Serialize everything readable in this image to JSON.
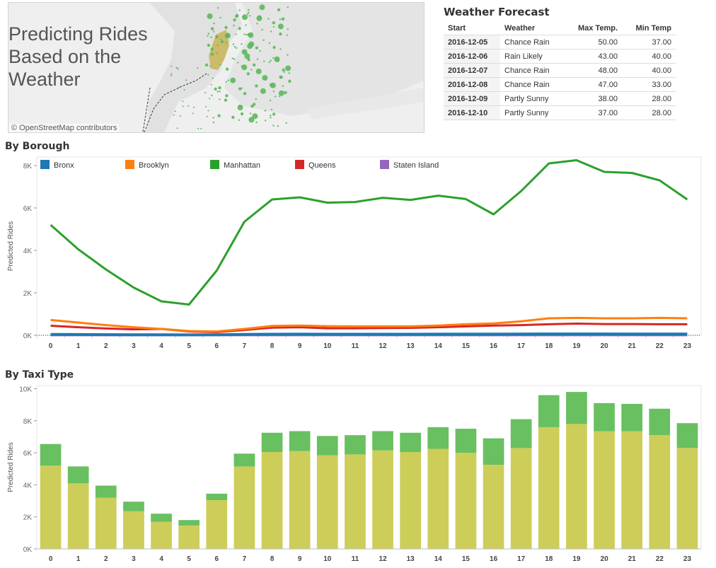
{
  "map": {
    "title_lines": [
      "Predicting Rides",
      "Based on the",
      "Weather"
    ],
    "attribution": "© OpenStreetMap contributors"
  },
  "weather": {
    "title": "Weather Forecast",
    "columns": [
      "Start",
      "Weather",
      "Max Temp.",
      "Min Temp"
    ],
    "rows": [
      [
        "2016-12-05",
        "Chance Rain",
        "50.00",
        "37.00"
      ],
      [
        "2016-12-06",
        "Rain Likely",
        "43.00",
        "40.00"
      ],
      [
        "2016-12-07",
        "Chance Rain",
        "48.00",
        "40.00"
      ],
      [
        "2016-12-08",
        "Chance Rain",
        "47.00",
        "33.00"
      ],
      [
        "2016-12-09",
        "Partly Sunny",
        "38.00",
        "28.00"
      ],
      [
        "2016-12-10",
        "Partly Sunny",
        "37.00",
        "28.00"
      ]
    ]
  },
  "chart_data": [
    {
      "type": "line",
      "title": "By Borough",
      "ylabel": "Predicted Rides",
      "ylim": [
        0,
        8400
      ],
      "yticks": [
        0,
        2000,
        4000,
        6000,
        8000
      ],
      "ytick_labels": [
        "0K",
        "2K",
        "4K",
        "6K",
        "8K"
      ],
      "x": [
        0,
        1,
        2,
        3,
        4,
        5,
        6,
        7,
        8,
        9,
        10,
        11,
        12,
        13,
        14,
        15,
        16,
        17,
        18,
        19,
        20,
        21,
        22,
        23
      ],
      "legend_position": "top",
      "series": [
        {
          "name": "Bronx",
          "color": "#1f77b4",
          "values": [
            40,
            35,
            30,
            25,
            22,
            20,
            25,
            40,
            50,
            55,
            50,
            50,
            50,
            50,
            55,
            55,
            55,
            60,
            65,
            65,
            65,
            60,
            60,
            60
          ]
        },
        {
          "name": "Brooklyn",
          "color": "#ff7f0e",
          "values": [
            720,
            600,
            480,
            380,
            300,
            200,
            180,
            300,
            440,
            460,
            430,
            420,
            420,
            420,
            460,
            520,
            560,
            660,
            800,
            820,
            800,
            800,
            820,
            800
          ]
        },
        {
          "name": "Manhattan",
          "color": "#2ca02c",
          "values": [
            5200,
            4050,
            3100,
            2250,
            1600,
            1450,
            3050,
            5350,
            6400,
            6500,
            6250,
            6280,
            6480,
            6380,
            6580,
            6420,
            5700,
            6800,
            8100,
            8250,
            7700,
            7650,
            7300,
            6400
          ]
        },
        {
          "name": "Queens",
          "color": "#d62728",
          "values": [
            450,
            380,
            320,
            280,
            300,
            180,
            150,
            250,
            360,
            380,
            330,
            330,
            340,
            350,
            380,
            420,
            460,
            480,
            520,
            550,
            530,
            530,
            520,
            520
          ]
        },
        {
          "name": "Staten Island",
          "color": "#9467bd",
          "values": [
            5,
            5,
            5,
            5,
            5,
            5,
            5,
            5,
            5,
            5,
            5,
            5,
            5,
            5,
            5,
            5,
            5,
            5,
            5,
            5,
            5,
            5,
            5,
            5
          ]
        }
      ]
    },
    {
      "type": "bar",
      "title": "By Taxi Type",
      "ylabel": "Predicted Rides",
      "ylim": [
        0,
        10200
      ],
      "yticks": [
        0,
        2000,
        4000,
        6000,
        8000,
        10000
      ],
      "ytick_labels": [
        "0K",
        "2K",
        "4K",
        "6K",
        "8K",
        "10K"
      ],
      "categories": [
        0,
        1,
        2,
        3,
        4,
        5,
        6,
        7,
        8,
        9,
        10,
        11,
        12,
        13,
        14,
        15,
        16,
        17,
        18,
        19,
        20,
        21,
        22,
        23
      ],
      "stacked": true,
      "series": [
        {
          "color": "#cdcd5a",
          "values": [
            5200,
            4100,
            3200,
            2350,
            1700,
            1450,
            3050,
            5150,
            6050,
            6100,
            5850,
            5900,
            6150,
            6050,
            6250,
            6000,
            5250,
            6300,
            7600,
            7800,
            7350,
            7350,
            7100,
            6300
          ]
        },
        {
          "color": "#68c060",
          "values": [
            1350,
            1050,
            750,
            600,
            500,
            350,
            400,
            800,
            1200,
            1250,
            1200,
            1200,
            1200,
            1200,
            1350,
            1500,
            1650,
            1800,
            2000,
            2000,
            1750,
            1700,
            1650,
            1550
          ]
        }
      ]
    }
  ]
}
